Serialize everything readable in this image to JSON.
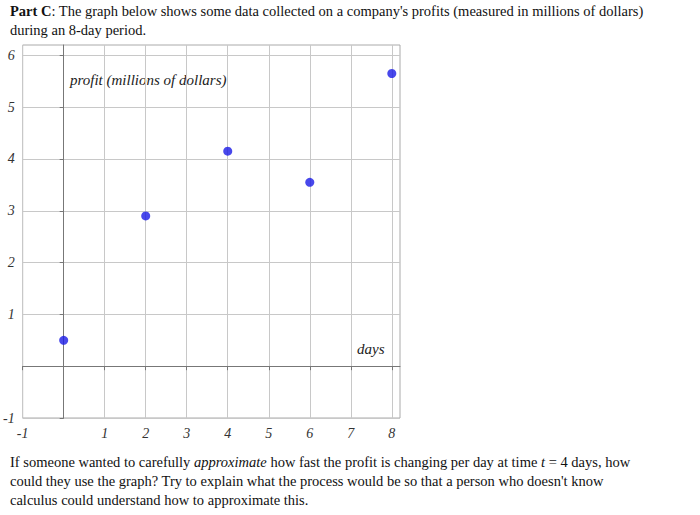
{
  "document": {
    "intro": [
      [
        {
          "text": "Part C",
          "style": "bold"
        },
        {
          "text": ": The graph below shows some data collected on a company's profits (measured in millions of dollars)",
          "style": "normal"
        }
      ],
      [
        {
          "text": "during an 8-day period.",
          "style": "normal"
        }
      ]
    ],
    "question": [
      [
        {
          "text": "If someone wanted to carefully ",
          "style": "normal"
        },
        {
          "text": "approximate",
          "style": "italic"
        },
        {
          "text": " how fast the profit is changing per day at time ",
          "style": "normal"
        },
        {
          "text": "t",
          "style": "italic"
        },
        {
          "text": " = 4 days, how",
          "style": "normal"
        }
      ],
      [
        {
          "text": "could they use the graph? Try to explain what the process would be so that a person who doesn't know",
          "style": "normal"
        }
      ],
      [
        {
          "text": "calculus could understand how to approximate this.",
          "style": "normal"
        }
      ]
    ]
  },
  "chart_data": {
    "type": "scatter",
    "y_label": "profit (millions of dollars)",
    "x_label": "days",
    "x": [
      0,
      2,
      4,
      6,
      8
    ],
    "values": [
      0.5,
      2.9,
      4.15,
      3.55,
      5.65
    ],
    "color": "#1a1ae6",
    "marker": "circle",
    "xlim": [
      -1,
      8.2
    ],
    "ylim": [
      -1,
      6.2
    ],
    "xticks": [
      -1,
      1,
      2,
      3,
      4,
      5,
      6,
      7,
      8
    ],
    "yticks": [
      -1,
      1,
      2,
      3,
      4,
      5,
      6
    ],
    "grid": true
  }
}
